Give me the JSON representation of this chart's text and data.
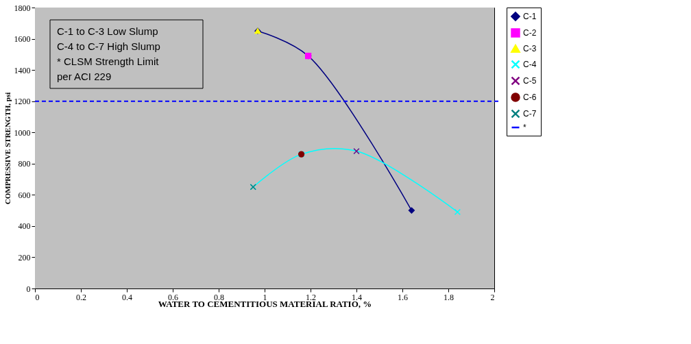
{
  "chart_data": {
    "type": "scatter",
    "xlabel": "WATER TO CEMENTITIOUS MATERIAL RATIO, %",
    "ylabel": "COMPRESSIVE STRENGTH, psi",
    "xlim": [
      0,
      2
    ],
    "xticks": [
      0,
      0.2,
      0.4,
      0.6,
      0.8,
      1,
      1.2,
      1.4,
      1.6,
      1.8,
      2
    ],
    "ylim": [
      0,
      1800
    ],
    "yticks": [
      0,
      200,
      400,
      600,
      800,
      1000,
      1200,
      1400,
      1600,
      1800
    ],
    "grid": false,
    "legend": "right",
    "series": [
      {
        "name": "C-1",
        "type": "line",
        "marker": "diamond",
        "color": "#000080",
        "x": [
          0.97,
          1.19,
          1.64
        ],
        "values": [
          1650,
          1490,
          500
        ]
      },
      {
        "name": "C-2",
        "type": "scatter",
        "marker": "square",
        "color": "#ff00ff",
        "x": [
          1.19
        ],
        "values": [
          1490
        ]
      },
      {
        "name": "C-3",
        "type": "scatter",
        "marker": "triangle",
        "color": "#ffff00",
        "x": [
          0.97
        ],
        "values": [
          1650
        ]
      },
      {
        "name": "C-4",
        "type": "line",
        "marker": "cross",
        "color": "#00ffff",
        "x": [
          0.95,
          1.16,
          1.4,
          1.84
        ],
        "values": [
          650,
          860,
          880,
          490
        ]
      },
      {
        "name": "C-5",
        "type": "scatter",
        "marker": "cross",
        "color": "#800080",
        "x": [
          1.4
        ],
        "values": [
          880
        ]
      },
      {
        "name": "C-6",
        "type": "scatter",
        "marker": "circle",
        "color": "#800000",
        "x": [
          1.16
        ],
        "values": [
          860
        ]
      },
      {
        "name": "C-7",
        "type": "scatter",
        "marker": "cross",
        "color": "#008080",
        "x": [
          0.95
        ],
        "values": [
          650
        ]
      }
    ],
    "ref_lines": [
      {
        "axis": "y",
        "value": 1200,
        "label": "*",
        "color": "#0000ff",
        "line_style": "dashed"
      }
    ],
    "annotations": [
      "C-1 to C-3 Low Slump",
      "C-4 to C-7 High Slump",
      "*  CLSM Strength Limit",
      "per ACI 229"
    ]
  }
}
